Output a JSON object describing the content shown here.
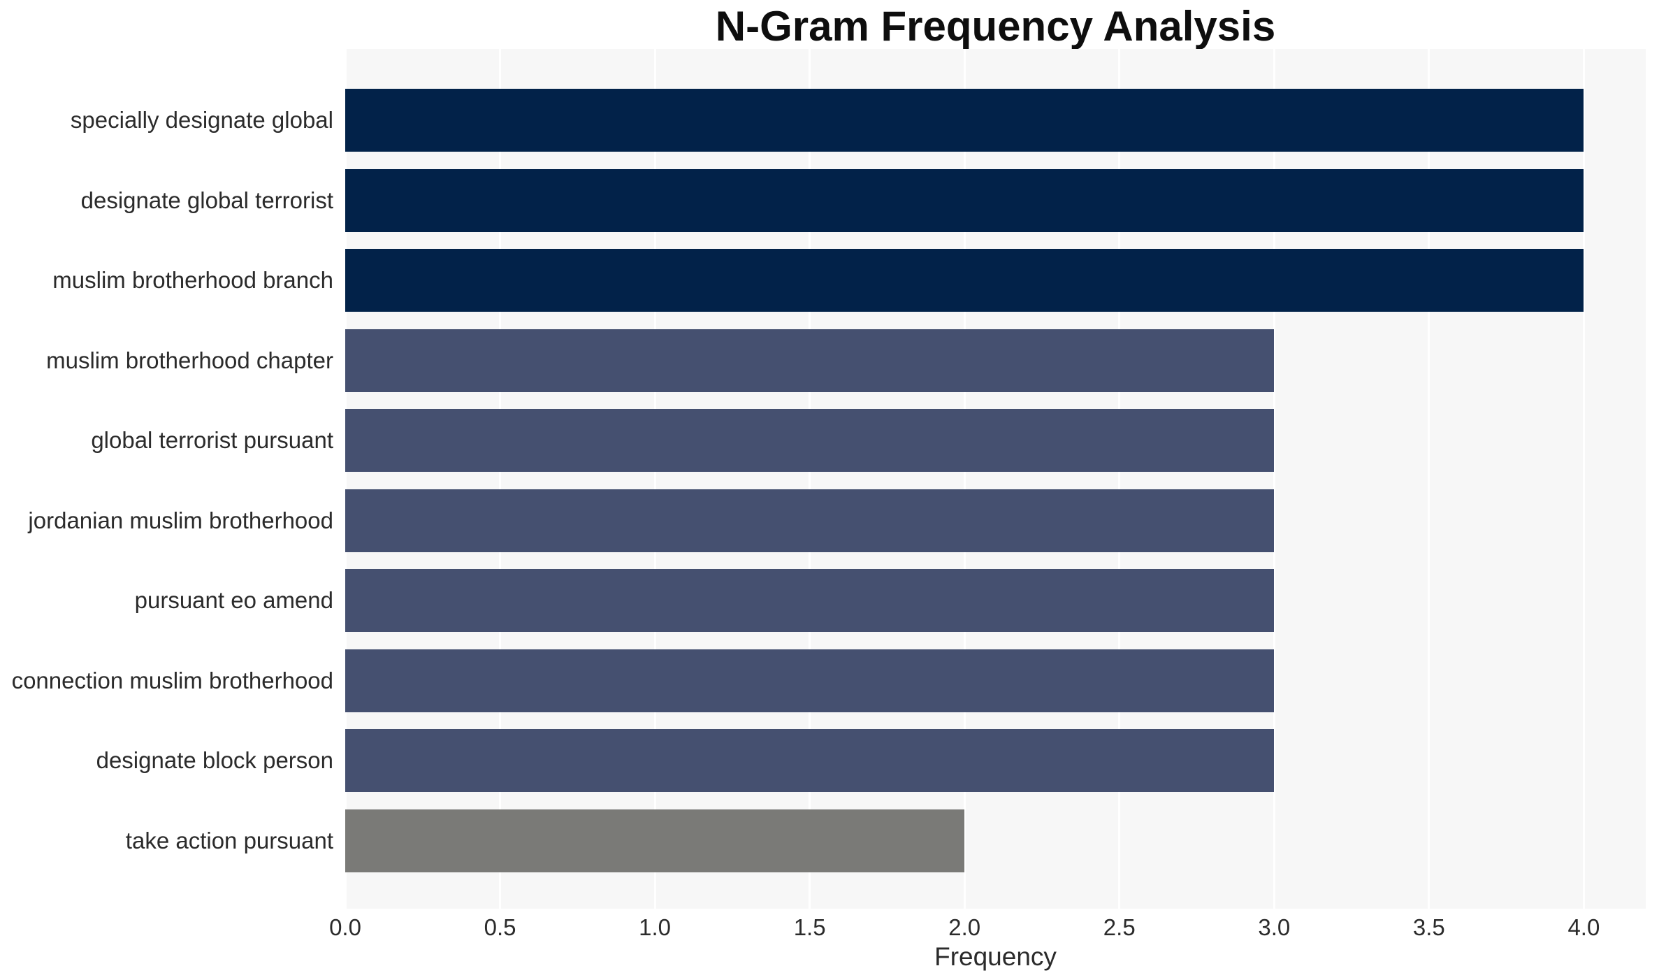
{
  "chart_data": {
    "type": "bar",
    "orientation": "horizontal",
    "title": "N-Gram Frequency Analysis",
    "xlabel": "Frequency",
    "ylabel": "",
    "categories": [
      "specially designate global",
      "designate global terrorist",
      "muslim brotherhood branch",
      "muslim brotherhood chapter",
      "global terrorist pursuant",
      "jordanian muslim brotherhood",
      "pursuant eo amend",
      "connection muslim brotherhood",
      "designate block person",
      "take action pursuant"
    ],
    "values": [
      4,
      4,
      4,
      3,
      3,
      3,
      3,
      3,
      3,
      2
    ],
    "bar_colors": [
      "#022249",
      "#022249",
      "#022249",
      "#455070",
      "#455070",
      "#455070",
      "#455070",
      "#455070",
      "#455070",
      "#7a7a77"
    ],
    "xlim": [
      0,
      4.2
    ],
    "xticks": [
      0.0,
      0.5,
      1.0,
      1.5,
      2.0,
      2.5,
      3.0,
      3.5,
      4.0
    ],
    "xtick_labels": [
      "0.0",
      "0.5",
      "1.0",
      "1.5",
      "2.0",
      "2.5",
      "3.0",
      "3.5",
      "4.0"
    ],
    "grid": true,
    "grid_axis": "x",
    "grid_color": "#ffffff",
    "plot_bg": "#f7f7f7",
    "figure_bg": "#ffffff",
    "legend_position": "none"
  }
}
